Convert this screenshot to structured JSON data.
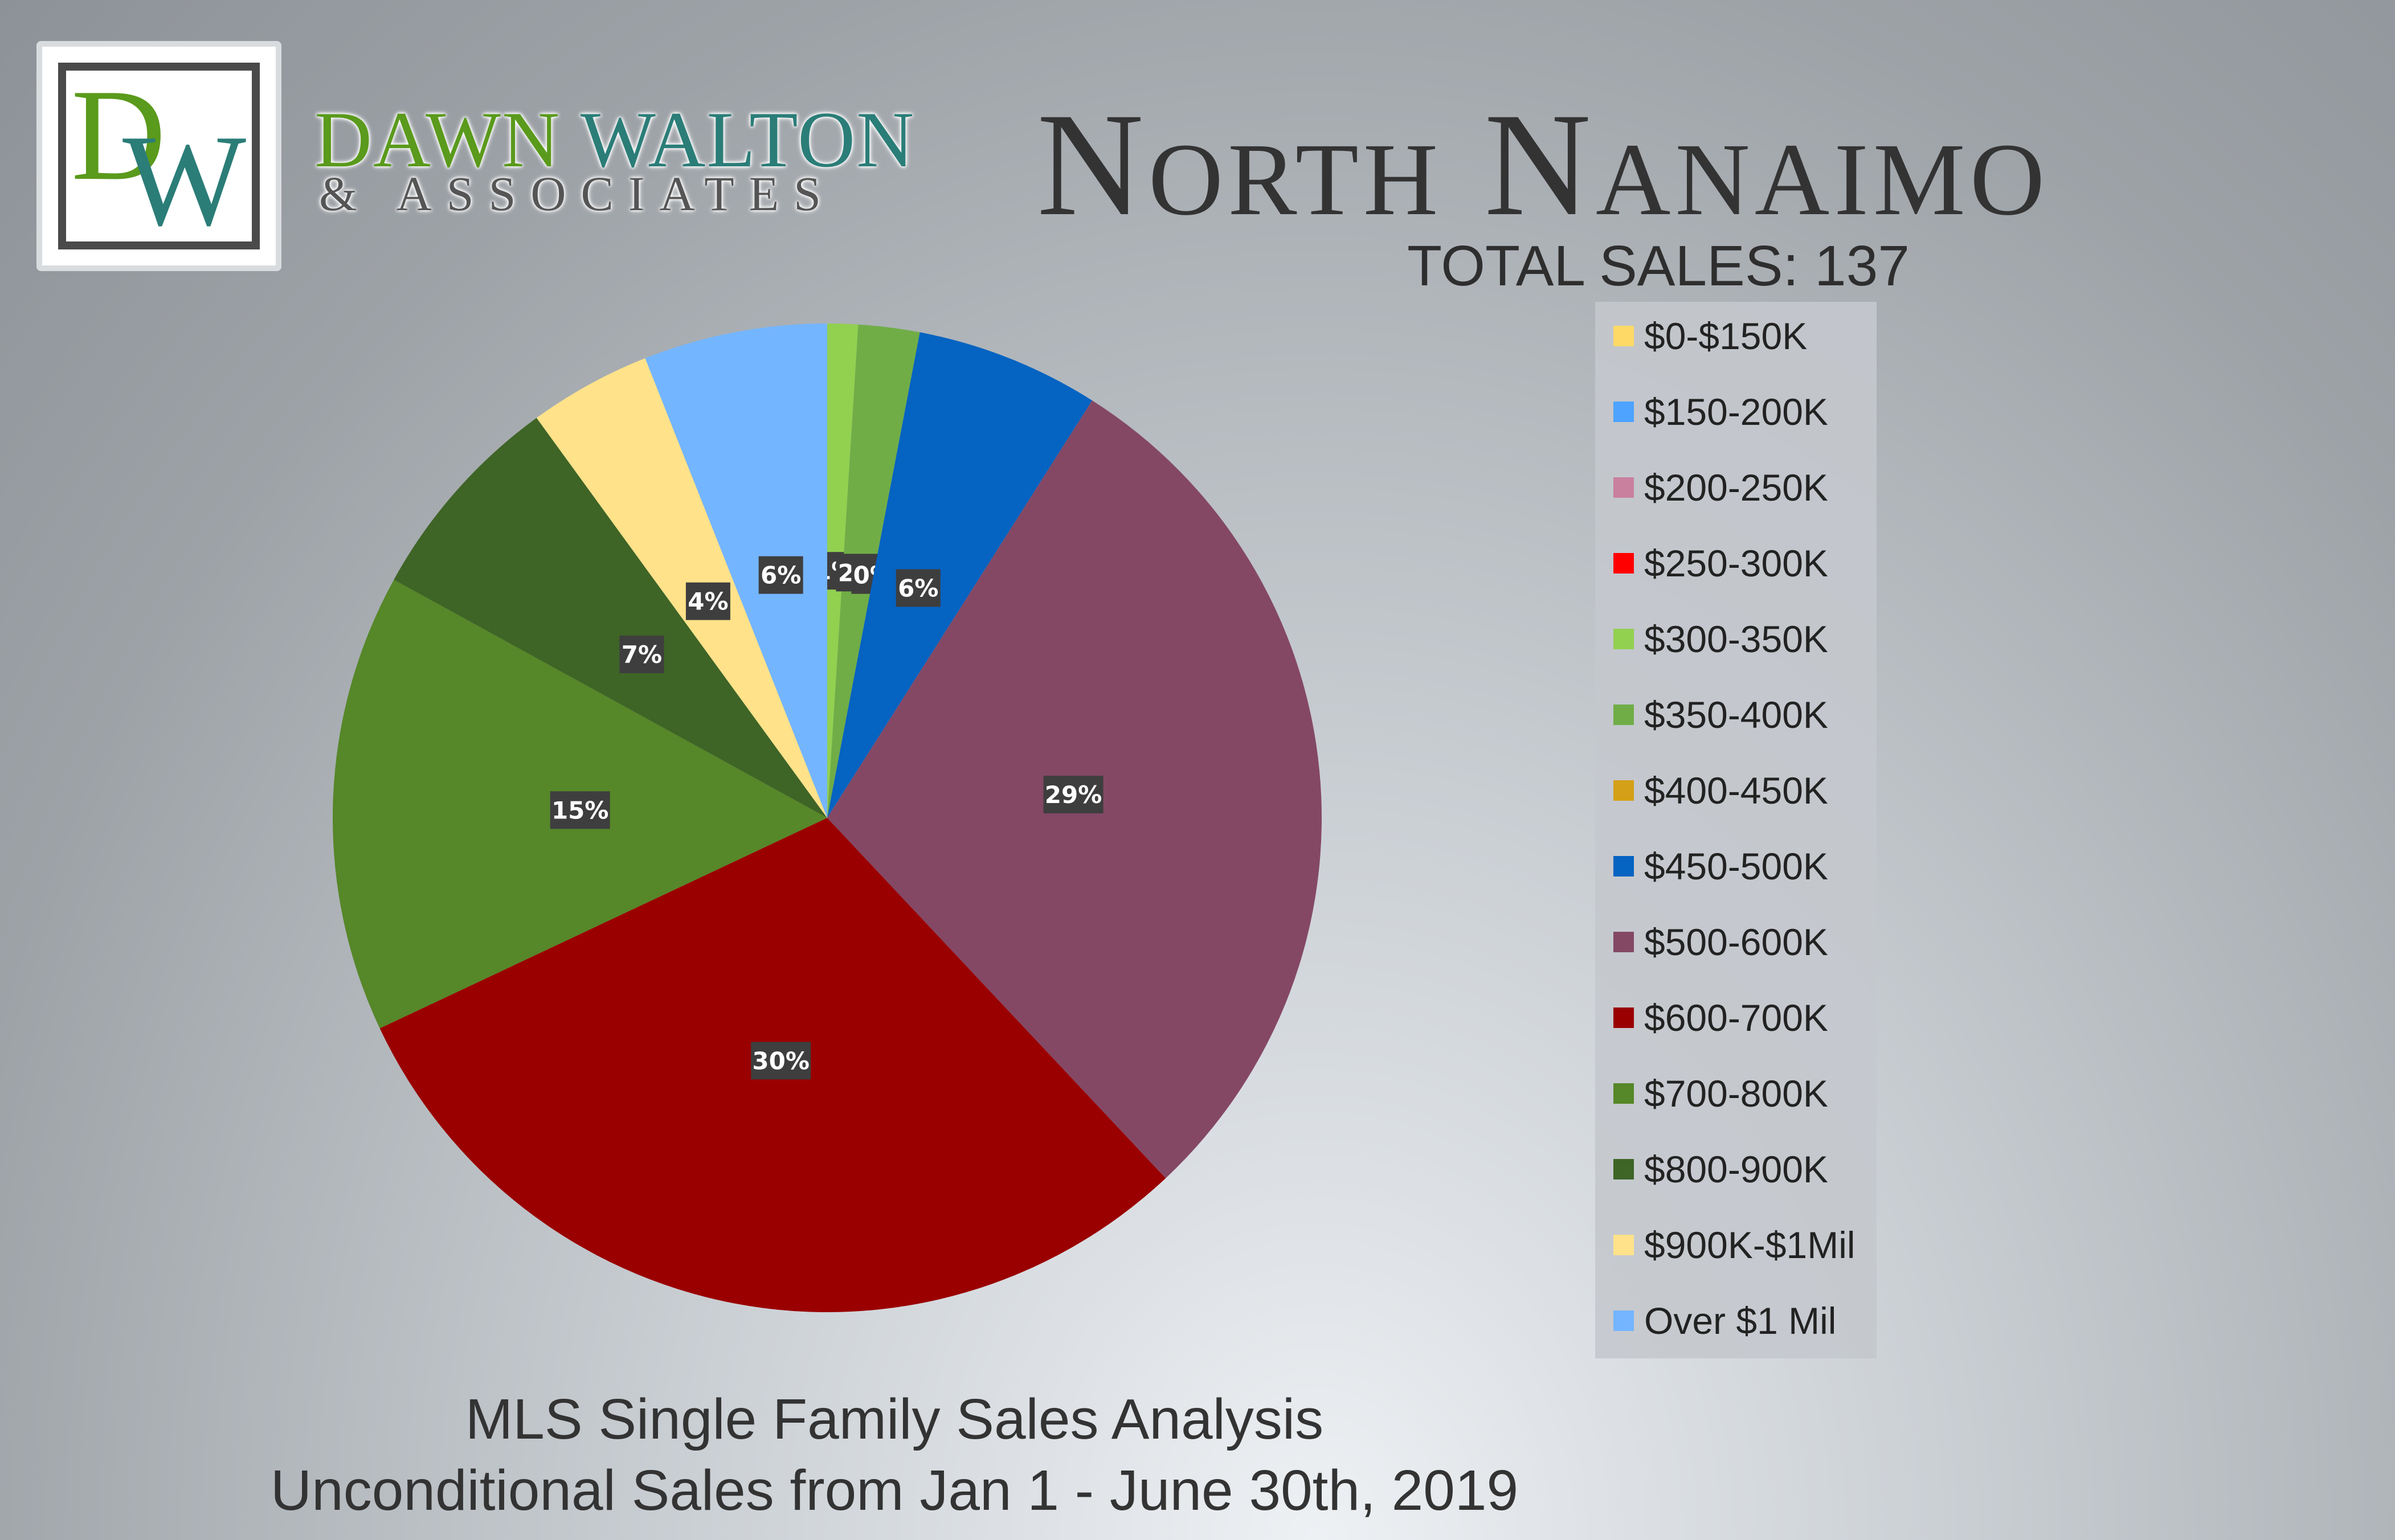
{
  "brand": {
    "monogram": "DW",
    "name_first": "DAWN",
    "name_last": "WALTON",
    "subtitle": "& ASSOCIATES"
  },
  "header": {
    "title": "North Nanaimo",
    "total_sales": "TOTAL SALES: 137"
  },
  "footer": {
    "line1": "MLS Single Family Sales Analysis",
    "line2": "Unconditional Sales from Jan 1 - June 30th, 2019"
  },
  "colors": {
    "accent_green": "#5a9a1c",
    "accent_teal": "#2b7d78"
  },
  "chart_data": {
    "type": "pie",
    "title": "",
    "legend_position": "right",
    "slices": [
      {
        "label": "$0-$150K",
        "value": 0,
        "color": "#ffd966",
        "data_label": ""
      },
      {
        "label": "$150-200K",
        "value": 0,
        "color": "#4da3ff",
        "data_label": ""
      },
      {
        "label": "$200-250K",
        "value": 0,
        "color": "#c9809e",
        "data_label": ""
      },
      {
        "label": "$250-300K",
        "value": 0,
        "color": "#ff0000",
        "data_label": ""
      },
      {
        "label": "$300-350K",
        "value": 1,
        "color": "#92d050",
        "data_label": "1%"
      },
      {
        "label": "$350-400K",
        "value": 2,
        "color": "#70ad47",
        "data_label": "2%"
      },
      {
        "label": "$400-450K",
        "value": 0,
        "color": "#d4a017",
        "data_label": "0%"
      },
      {
        "label": "$450-500K",
        "value": 6,
        "color": "#0563c1",
        "data_label": "6%"
      },
      {
        "label": "$500-600K",
        "value": 29,
        "color": "#844865",
        "data_label": "29%"
      },
      {
        "label": "$600-700K",
        "value": 30,
        "color": "#9a0000",
        "data_label": "30%"
      },
      {
        "label": "$700-800K",
        "value": 15,
        "color": "#568728",
        "data_label": "15%"
      },
      {
        "label": "$800-900K",
        "value": 7,
        "color": "#3e6426",
        "data_label": "7%"
      },
      {
        "label": "$900K-$1Mil",
        "value": 4,
        "color": "#ffe28a",
        "data_label": "4%"
      },
      {
        "label": "Over $1 Mil",
        "value": 6,
        "color": "#74b5ff",
        "data_label": "6%"
      }
    ]
  }
}
